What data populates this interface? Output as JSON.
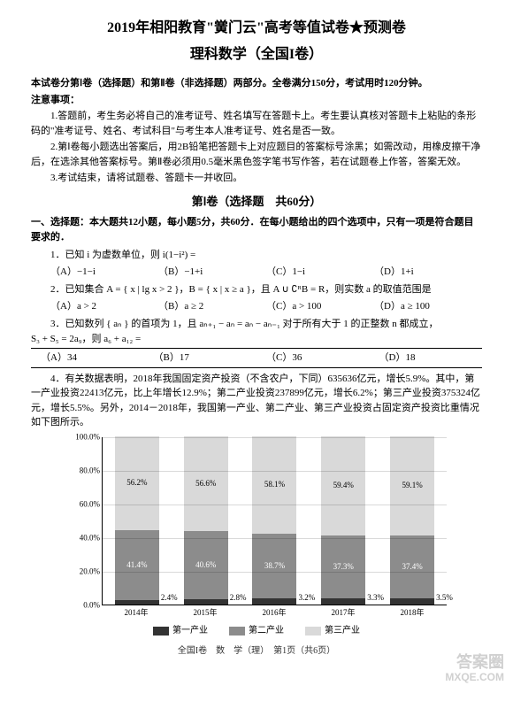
{
  "title_main": "2019年相阳教育\"黉门云\"高考等值试卷★预测卷",
  "title_sub": "理科数学（全国I卷）",
  "preface_line": "本试卷分第Ⅰ卷（选择题）和第Ⅱ卷（非选择题）两部分。全卷满分150分，考试用时120分钟。",
  "notice_head": "注意事项：",
  "notice1": "1.答题前，考生务必将自己的准考证号、姓名填写在答题卡上。考生要认真核对答题卡上粘贴的条形码的\"准考证号、姓名、考试科目\"与考生本人准考证号、姓名是否一致。",
  "notice2": "2.第Ⅰ卷每小题选出答案后，用2B铅笔把答题卡上对应题目的答案标号涂黑；如需改动，用橡皮擦干净后，在选涂其他答案标号。第Ⅱ卷必须用0.5毫米黑色签字笔书写作答，若在试题卷上作答，答案无效。",
  "notice3": "3.考试结束，请将试题卷、答题卡一并收回。",
  "section1_head": "第Ⅰ卷（选择题　共60分）",
  "section1_instr": "一、选择题：本大题共12小题，每小题5分，共60分．在每小题给出的四个选项中，只有一项是符合题目要求的．",
  "q1": "1．已知 i 为虚数单位，则 i(1−i²) =",
  "q1a": "（A）−1−i",
  "q1b": "（B）−1+i",
  "q1c": "（C）1−i",
  "q1d": "（D）1+i",
  "q2": "2．已知集合 A = { x | lg x > 2 }，B = { x | x ≥ a }，且 A ∪ ∁ᴿB = R，则实数 a 的取值范围是",
  "q2a": "（A）a > 2",
  "q2b": "（B）a ≥ 2",
  "q2c": "（C）a > 100",
  "q2d": "（D）a ≥ 100",
  "q3_l1": "3．已知数列 { aₙ } 的首项为 1，且 aₙ₊₁ − aₙ = aₙ − aₙ₋₁ 对于所有大于 1 的正整数 n 都成立，",
  "q3_l2": "S₃ + S₅ = 2a₉，则 a₆ + a₁₂ =",
  "q3a": "（A）34",
  "q3b": "（B）17",
  "q3c": "（C）36",
  "q3d": "（D）18",
  "q4": "4．有关数据表明，2018年我国固定资产投资（不含农户，下同）635636亿元，增长5.9%。其中，第一产业投资22413亿元，比上年增长12.9%；第二产业投资237899亿元，增长6.2%；第三产业投资375324亿元，增长5.5%。另外，2014－2018年，我国第一产业、第二产业、第三产业投资占固定资产投资比重情况如下图所示。",
  "chart": {
    "type": "stacked-bar",
    "y_ticks": [
      "0.0%",
      "20.0%",
      "40.0%",
      "60.0%",
      "80.0%",
      "100.0%"
    ],
    "y_max": 100,
    "categories": [
      "2014年",
      "2015年",
      "2016年",
      "2017年",
      "2018年"
    ],
    "series1_label": "第一产业",
    "series2_label": "第二产业",
    "series3_label": "第三产业",
    "color1": "#333333",
    "color2": "#8c8c8c",
    "color3": "#d9d9d9",
    "bars": [
      {
        "s1": 2.4,
        "s2": 41.4,
        "s3": 56.2,
        "l1": "2.4%",
        "l2": "41.4%",
        "l3": "56.2%"
      },
      {
        "s1": 2.8,
        "s2": 40.6,
        "s3": 56.6,
        "l1": "2.8%",
        "l2": "40.6%",
        "l3": "56.6%"
      },
      {
        "s1": 3.2,
        "s2": 38.7,
        "s3": 58.1,
        "l1": "3.2%",
        "l2": "38.7%",
        "l3": "58.1%"
      },
      {
        "s1": 3.3,
        "s2": 37.3,
        "s3": 59.4,
        "l1": "3.3%",
        "l2": "37.3%",
        "l3": "59.4%"
      },
      {
        "s1": 3.5,
        "s2": 37.4,
        "s3": 59.1,
        "l1": "3.5%",
        "l2": "37.4%",
        "l3": "59.1%"
      }
    ]
  },
  "footer": "全国I卷　数　学（理）　第1页（共6页）",
  "watermark_l1": "答案圈",
  "watermark_l2": "MXQE.COM"
}
